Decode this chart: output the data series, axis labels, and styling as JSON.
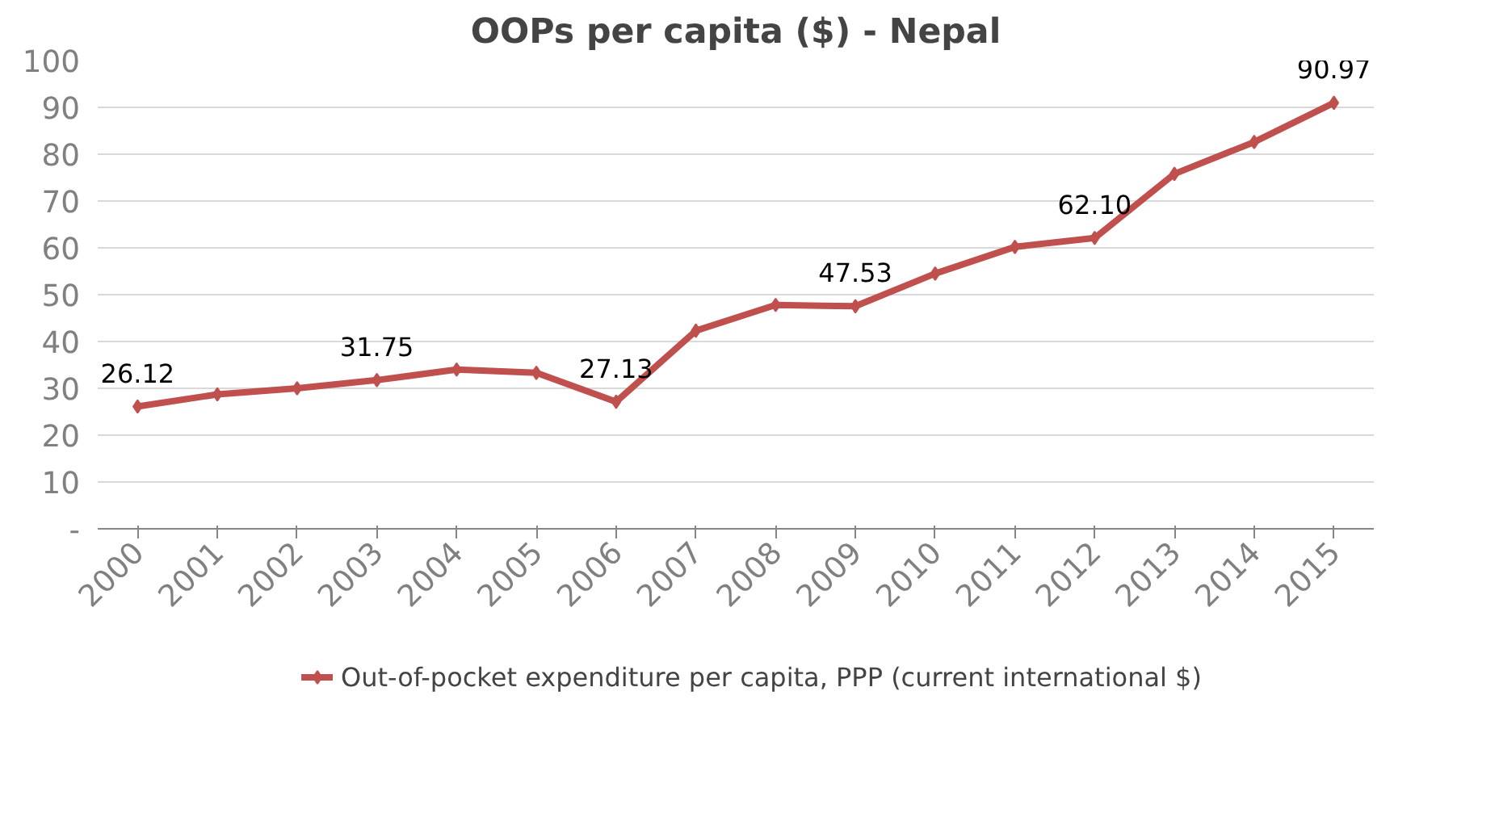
{
  "chart_data": {
    "type": "line",
    "title": "OOPs per capita ($) - Nepal",
    "categories": [
      "2000",
      "2001",
      "2002",
      "2003",
      "2004",
      "2005",
      "2006",
      "2007",
      "2008",
      "2009",
      "2010",
      "2011",
      "2012",
      "2013",
      "2014",
      "2015"
    ],
    "series": [
      {
        "name": "Out-of-pocket expenditure per capita, PPP (current international $)",
        "color": "#c0504d",
        "values": [
          26.12,
          28.7,
          30.0,
          31.75,
          34.0,
          33.3,
          27.13,
          42.3,
          47.8,
          47.53,
          54.5,
          60.2,
          62.1,
          75.8,
          82.6,
          90.97
        ],
        "value_labels": [
          "26.12",
          null,
          null,
          "31.75",
          null,
          null,
          "27.13",
          null,
          null,
          "47.53",
          null,
          null,
          "62.10",
          null,
          null,
          "90.97"
        ]
      }
    ],
    "ylim": [
      0,
      100
    ],
    "yticks": [
      {
        "value": 0,
        "label": "-"
      },
      10,
      20,
      30,
      40,
      50,
      60,
      70,
      80,
      90,
      100
    ],
    "grid": "y",
    "legend": "bottom",
    "marker": "diamond",
    "line_style": "solid"
  }
}
